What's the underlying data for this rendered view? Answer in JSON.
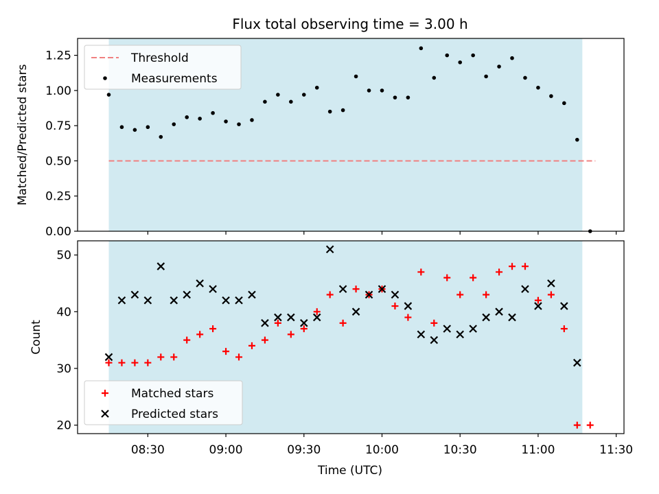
{
  "chart_data": {
    "title": "Flux total observing time = 3.00 h",
    "xlabel": "Time (UTC)",
    "x_ticks": [
      "08:30",
      "09:00",
      "09:30",
      "10:00",
      "10:30",
      "11:00",
      "11:30"
    ],
    "shaded_span": {
      "start": "08:15",
      "end": "11:17",
      "color": "#add8e6"
    },
    "panels": [
      {
        "type": "scatter",
        "ylabel": "Matched/Predicted stars",
        "ylim": [
          0.0,
          1.37
        ],
        "y_ticks": [
          "0.00",
          "0.25",
          "0.50",
          "0.75",
          "1.00",
          "1.25"
        ],
        "legend": {
          "placement": "upper-left",
          "entries": [
            "Threshold",
            "Measurements"
          ]
        },
        "threshold": {
          "name": "Threshold",
          "value": 0.5,
          "color": "#f08080",
          "style": "dashed",
          "x_start": "08:15",
          "x_end": "11:22"
        },
        "series": [
          {
            "name": "Measurements",
            "color": "#000000",
            "marker": "dot",
            "x": [
              "08:15",
              "08:20",
              "08:25",
              "08:30",
              "08:35",
              "08:40",
              "08:45",
              "08:50",
              "08:55",
              "09:00",
              "09:05",
              "09:10",
              "09:15",
              "09:20",
              "09:25",
              "09:30",
              "09:35",
              "09:40",
              "09:45",
              "09:50",
              "09:55",
              "10:00",
              "10:05",
              "10:10",
              "10:15",
              "10:20",
              "10:25",
              "10:30",
              "10:35",
              "10:40",
              "10:45",
              "10:50",
              "10:55",
              "11:00",
              "11:05",
              "11:10",
              "11:15",
              "11:20"
            ],
            "y": [
              0.97,
              0.74,
              0.72,
              0.74,
              0.67,
              0.76,
              0.81,
              0.8,
              0.84,
              0.78,
              0.76,
              0.79,
              0.92,
              0.97,
              0.92,
              0.97,
              1.02,
              0.85,
              0.86,
              1.1,
              1.0,
              1.0,
              0.95,
              0.95,
              1.3,
              1.09,
              1.25,
              1.2,
              1.25,
              1.1,
              1.17,
              1.23,
              1.09,
              1.02,
              0.96,
              0.91,
              0.65,
              0.0
            ]
          }
        ]
      },
      {
        "type": "scatter",
        "ylabel": "Count",
        "ylim": [
          18.5,
          52.5
        ],
        "y_ticks": [
          "20",
          "30",
          "40",
          "50"
        ],
        "legend": {
          "placement": "lower-left",
          "entries": [
            "Matched stars",
            "Predicted stars"
          ]
        },
        "series": [
          {
            "name": "Matched stars",
            "color": "#ff0000",
            "marker": "plus",
            "x": [
              "08:15",
              "08:20",
              "08:25",
              "08:30",
              "08:35",
              "08:40",
              "08:45",
              "08:50",
              "08:55",
              "09:00",
              "09:05",
              "09:10",
              "09:15",
              "09:20",
              "09:25",
              "09:30",
              "09:35",
              "09:40",
              "09:45",
              "09:50",
              "09:55",
              "10:00",
              "10:05",
              "10:10",
              "10:15",
              "10:20",
              "10:25",
              "10:30",
              "10:35",
              "10:40",
              "10:45",
              "10:50",
              "10:55",
              "11:00",
              "11:05",
              "11:10",
              "11:15",
              "11:20"
            ],
            "y": [
              31,
              31,
              31,
              31,
              32,
              32,
              35,
              36,
              37,
              33,
              32,
              34,
              35,
              38,
              36,
              37,
              40,
              43,
              38,
              44,
              43,
              44,
              41,
              39,
              47,
              38,
              46,
              43,
              46,
              43,
              47,
              48,
              48,
              42,
              43,
              37,
              20,
              20
            ]
          },
          {
            "name": "Predicted stars",
            "color": "#000000",
            "marker": "x",
            "x": [
              "08:15",
              "08:20",
              "08:25",
              "08:30",
              "08:35",
              "08:40",
              "08:45",
              "08:50",
              "08:55",
              "09:00",
              "09:05",
              "09:10",
              "09:15",
              "09:20",
              "09:25",
              "09:30",
              "09:35",
              "09:40",
              "09:45",
              "09:50",
              "09:55",
              "10:00",
              "10:05",
              "10:10",
              "10:15",
              "10:20",
              "10:25",
              "10:30",
              "10:35",
              "10:40",
              "10:45",
              "10:50",
              "10:55",
              "11:00",
              "11:05",
              "11:10",
              "11:15"
            ],
            "y": [
              32,
              42,
              43,
              42,
              48,
              42,
              43,
              45,
              44,
              42,
              42,
              43,
              38,
              39,
              39,
              38,
              39,
              51,
              44,
              40,
              43,
              44,
              43,
              41,
              36,
              35,
              37,
              36,
              37,
              39,
              40,
              39,
              44,
              41,
              45,
              41,
              31
            ]
          }
        ]
      }
    ]
  }
}
